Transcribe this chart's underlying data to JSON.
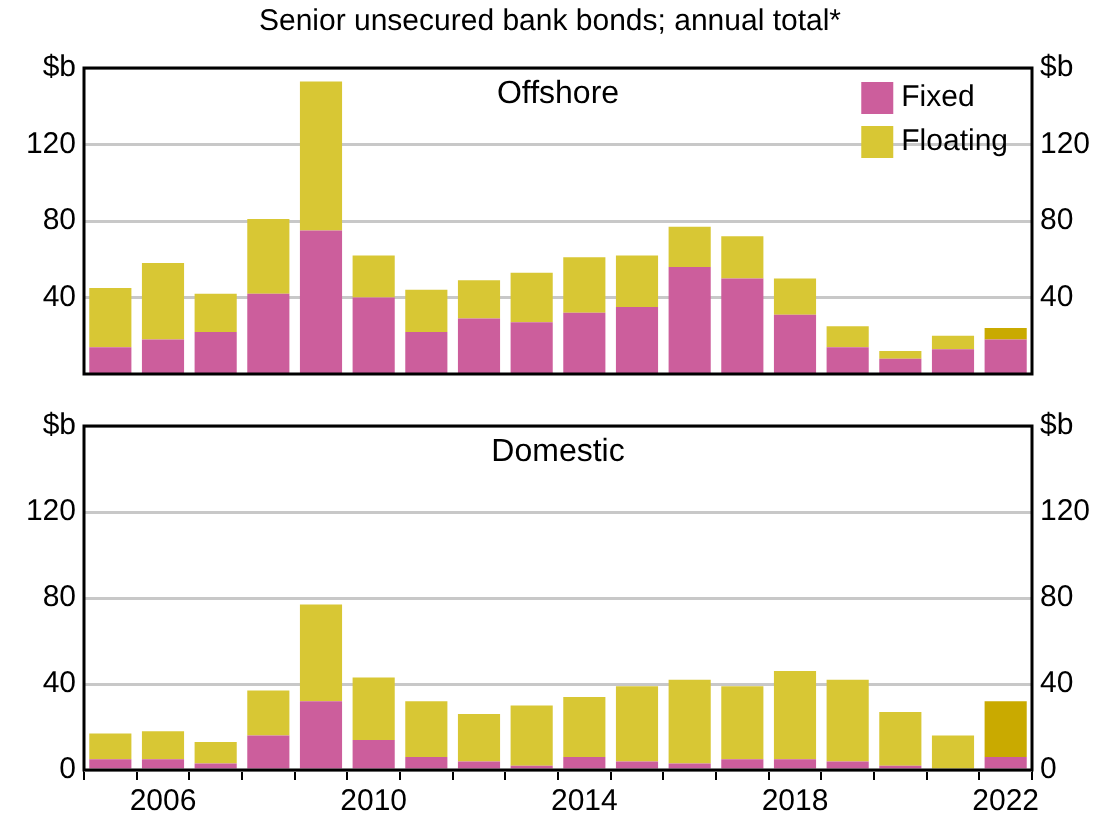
{
  "chart_data": [
    {
      "type": "bar",
      "title": "Offshore",
      "subtitle": "Senior unsecured bank bonds; annual total*",
      "stacked": true,
      "grid": "y",
      "legend": "top right",
      "tick_labels": "y",
      "categories": [
        null,
        "2006",
        null,
        null,
        null,
        "2010",
        null,
        null,
        null,
        "2014",
        null,
        null,
        null,
        "2018",
        null,
        null,
        null,
        "2022"
      ],
      "ylim": [
        0,
        160
      ],
      "yticks": [
        40,
        80,
        120,
        {
          "value": 160,
          "label": "$b"
        }
      ],
      "y2lim": [
        0,
        160
      ],
      "y2ticks": [
        40,
        80,
        120,
        {
          "value": 160,
          "label": "$b"
        }
      ],
      "series": [
        {
          "name": "Fixed",
          "color": "#cc5e9c",
          "values": [
            14,
            18,
            22,
            42,
            75,
            40,
            22,
            29,
            27,
            32,
            35,
            56,
            50,
            31,
            14,
            8,
            13,
            18
          ]
        },
        {
          "name": "Floating",
          "color": "#d8c734",
          "colors": [
            "#d8c734",
            "#d8c734",
            "#d8c734",
            "#d8c734",
            "#d8c734",
            "#d8c734",
            "#d8c734",
            "#d8c734",
            "#d8c734",
            "#d8c734",
            "#d8c734",
            "#d8c734",
            "#d8c734",
            "#d8c734",
            "#d8c734",
            "#d8c734",
            "#d8c734",
            "#c9aa00"
          ],
          "values": [
            31,
            40,
            20,
            39,
            78,
            22,
            22,
            20,
            26,
            29,
            27,
            21,
            22,
            19,
            11,
            4,
            7,
            6
          ]
        }
      ]
    },
    {
      "type": "bar",
      "title": "Domestic",
      "stacked": true,
      "grid": "y",
      "categories": [
        null,
        "2006",
        null,
        null,
        null,
        "2010",
        null,
        null,
        null,
        "2014",
        null,
        null,
        null,
        "2018",
        null,
        null,
        null,
        "2022"
      ],
      "ylim": [
        0,
        160
      ],
      "yticks": [
        0,
        40,
        80,
        120,
        {
          "value": 160,
          "label": "$b"
        }
      ],
      "y2lim": [
        0,
        160
      ],
      "y2ticks": [
        0,
        40,
        80,
        120,
        {
          "value": 160,
          "label": "$b"
        }
      ],
      "series": [
        {
          "color": "#cc5e9c",
          "values": [
            5,
            5,
            3,
            16,
            32,
            14,
            6,
            4,
            2,
            6,
            4,
            3,
            5,
            5,
            4,
            2,
            0,
            6
          ]
        },
        {
          "colors": [
            "#d8c734",
            "#d8c734",
            "#d8c734",
            "#d8c734",
            "#d8c734",
            "#d8c734",
            "#d8c734",
            "#d8c734",
            "#d8c734",
            "#d8c734",
            "#d8c734",
            "#d8c734",
            "#d8c734",
            "#d8c734",
            "#d8c734",
            "#d8c734",
            "#d8c734",
            "#c9aa00"
          ],
          "values": [
            12,
            13,
            10,
            21,
            45,
            29,
            26,
            22,
            28,
            28,
            35,
            39,
            34,
            41,
            38,
            25,
            16,
            26
          ]
        }
      ]
    }
  ]
}
